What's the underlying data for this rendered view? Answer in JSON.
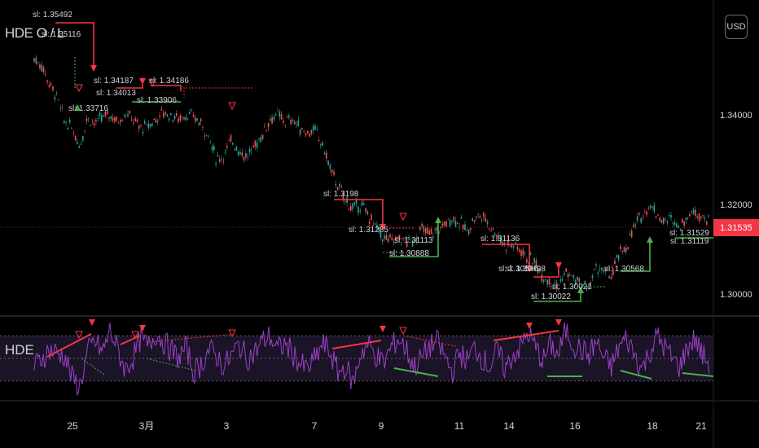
{
  "indicator_main": "HDE O / L",
  "indicator_sub": "HDE",
  "currency_button": "USD",
  "price_axis": {
    "ticks": [
      "1.34000",
      "1.32000",
      "1.30000"
    ],
    "last_price": "1.31535",
    "last_price_color": "#f23645"
  },
  "time_axis": [
    "25",
    "3月",
    "3",
    "7",
    "9",
    "11",
    "14",
    "16",
    "18",
    "21"
  ],
  "sl_labels": {
    "red": [
      "sl: 1.35492",
      "sl: 1.35116",
      "sl: 1.34187",
      "sl: 1.34186",
      "sl: 1.3198",
      "sl: 1.31285",
      "sl: 1.31136",
      "sl: 1.30546"
    ],
    "white": [
      "sl: 1.33716",
      "sl: 1.34013",
      "sl: 1.33906",
      "sl: 1.31113",
      "sl: 1.30888",
      "sl: 1.30498",
      "sl: 1.30021",
      "sl: 1.30022",
      "sl: 1.30568",
      "sl: 1.31529",
      "sl: 1.31119"
    ]
  },
  "colors": {
    "bull": "#26a69a",
    "bear": "#ef5350",
    "red_line": "#f23645",
    "green_line": "#4caf50",
    "osc": "#9c40c8",
    "osc_band": "#1a1426"
  },
  "chart_data": {
    "type": "line",
    "main_series_name": "HDE O / L",
    "ylim": [
      1.2955,
      1.3645
    ],
    "yticks": [
      1.34,
      1.32,
      1.3
    ],
    "price": [
      1.3525,
      1.351,
      1.347,
      1.344,
      1.3385,
      1.337,
      1.333,
      1.3395,
      1.338,
      1.3395,
      1.34,
      1.3385,
      1.3405,
      1.339,
      1.337,
      1.3375,
      1.339,
      1.3405,
      1.3398,
      1.3392,
      1.34,
      1.3395,
      1.338,
      1.335,
      1.33,
      1.331,
      1.3345,
      1.332,
      1.3305,
      1.333,
      1.3355,
      1.339,
      1.34,
      1.3385,
      1.339,
      1.337,
      1.336,
      1.3365,
      1.333,
      1.328,
      1.324,
      1.321,
      1.319,
      1.32,
      1.3175,
      1.315,
      1.3125,
      1.312,
      1.3125,
      1.3115,
      1.312,
      1.3145,
      1.3135,
      1.314,
      1.3155,
      1.317,
      1.316,
      1.314,
      1.317,
      1.3175,
      1.3155,
      1.313,
      1.311,
      1.311,
      1.31,
      1.308,
      1.307,
      1.304,
      1.303,
      1.3015,
      1.305,
      1.3035,
      1.302,
      1.3015,
      1.306,
      1.305,
      1.304,
      1.309,
      1.3105,
      1.315,
      1.3175,
      1.32,
      1.318,
      1.316,
      1.317,
      1.315,
      1.3175,
      1.3185,
      1.3175,
      1.316
    ],
    "oscillator": [
      -0.3,
      0.0,
      0.3,
      0.2,
      0.1,
      -0.7,
      -1.0,
      0.2,
      0.6,
      0.2,
      1.0,
      0.3,
      -0.4,
      0.0,
      0.7,
      0.4,
      0.9,
      0.6,
      0.3,
      0.0,
      0.4,
      -0.5,
      -0.2,
      0.3,
      0.1,
      -0.3,
      0.1,
      0.5,
      0.0,
      0.2,
      0.6,
      0.8,
      0.3,
      0.5,
      0.2,
      -0.2,
      -0.4,
      0.0,
      0.5,
      0.2,
      -0.5,
      -0.3,
      -0.9,
      0.2,
      0.5,
      0.1,
      -0.2,
      0.4,
      0.7,
      0.3,
      -0.3,
      0.0,
      0.4,
      0.6,
      0.1,
      -0.5,
      0.2,
      -0.1,
      0.4,
      0.0,
      -0.3,
      0.3,
      -0.4,
      0.1,
      0.4,
      0.9,
      0.4,
      -0.1,
      0.5,
      0.1,
      1.0,
      0.5,
      0.3,
      0.1,
      0.6,
      0.0,
      -0.3,
      0.4,
      0.7,
      0.2,
      -0.4,
      0.2,
      0.8,
      0.4,
      0.0,
      -0.3,
      0.4,
      0.7,
      0.1,
      -0.2
    ],
    "osc_ylim": [
      -1.3,
      1.3
    ]
  }
}
